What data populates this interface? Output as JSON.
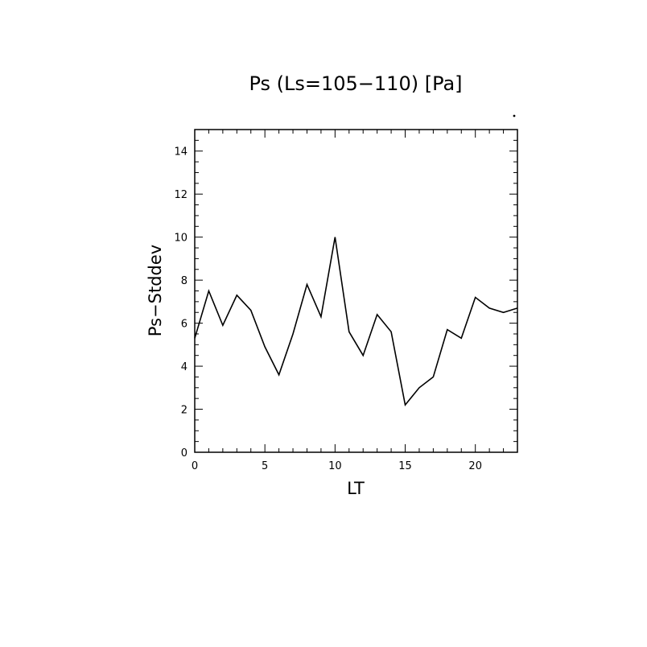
{
  "chart_data": {
    "type": "line",
    "title": "Ps (Ls=105−110) [Pa]",
    "xlabel": "LT",
    "ylabel": "Ps−Stddev",
    "xlim": [
      0,
      23
    ],
    "ylim": [
      0,
      15
    ],
    "x_ticks": [
      0,
      5,
      10,
      15,
      20
    ],
    "x_tick_labels": [
      "0",
      "5",
      "10",
      "15",
      "20"
    ],
    "y_ticks": [
      0,
      2,
      4,
      6,
      8,
      10,
      12,
      14
    ],
    "y_tick_labels": [
      "0",
      "2",
      "4",
      "6",
      "8",
      "10",
      "12",
      "14"
    ],
    "grid": false,
    "series": [
      {
        "x": [
          0,
          1,
          2,
          3,
          4,
          5,
          6,
          7,
          8,
          9,
          10,
          11,
          12,
          13,
          14,
          15,
          16,
          17,
          18,
          19,
          20,
          21,
          22,
          23
        ],
        "values": [
          5.3,
          7.5,
          5.9,
          7.3,
          6.6,
          4.9,
          3.6,
          5.5,
          7.8,
          6.3,
          10.0,
          5.6,
          4.5,
          6.4,
          5.6,
          2.2,
          3.0,
          3.5,
          5.7,
          5.3,
          7.2,
          6.7,
          6.5,
          6.7
        ]
      }
    ]
  }
}
